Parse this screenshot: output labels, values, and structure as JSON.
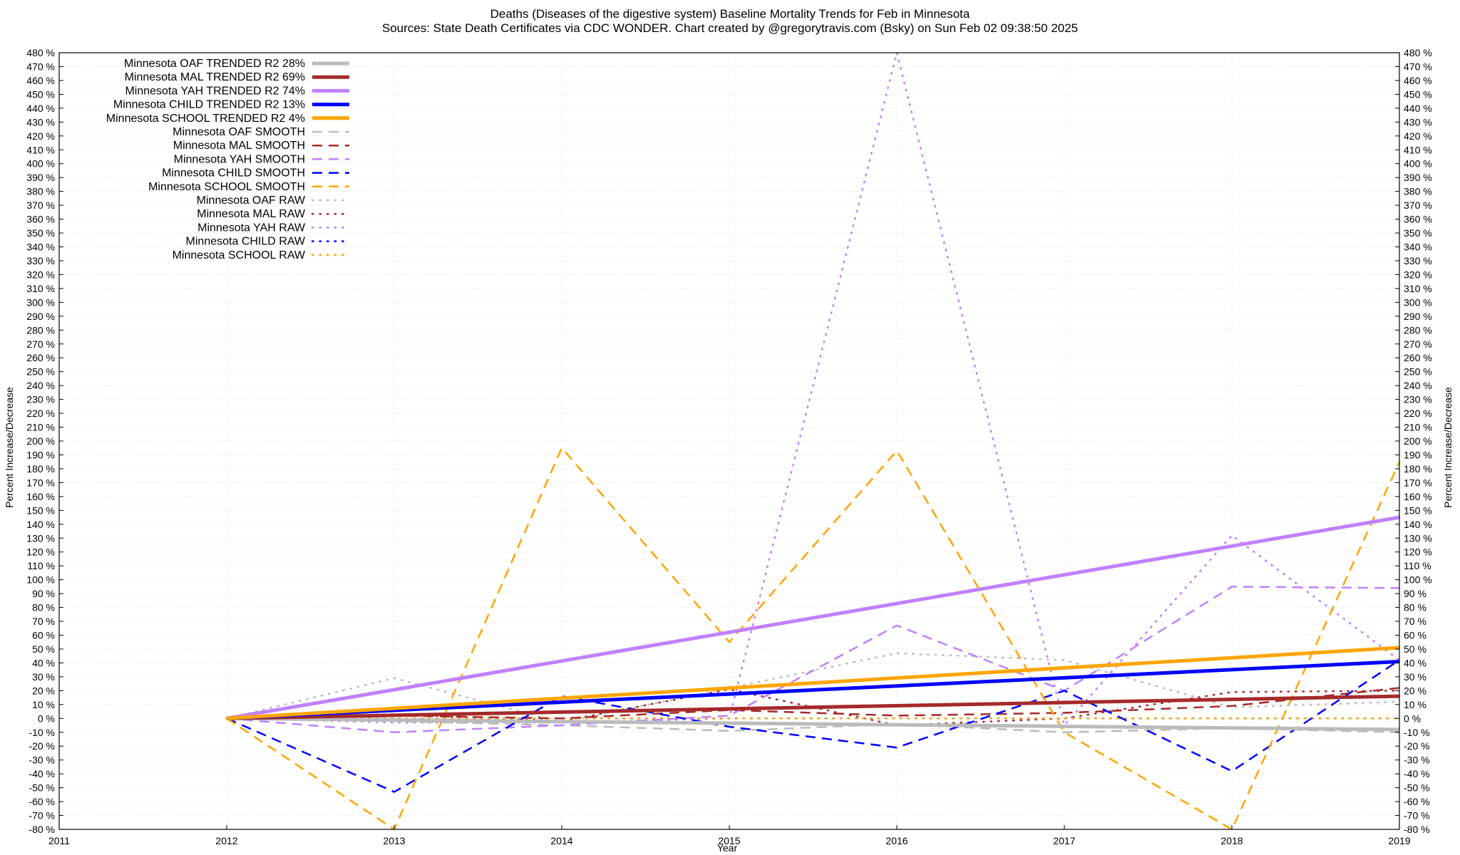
{
  "chart_data": {
    "type": "line",
    "title": "Deaths (Diseases of the digestive system)  Baseline Mortality Trends for Feb in Minnesota",
    "subtitle": "Sources: State Death Certificates via CDC WONDER.               Chart created by @gregorytravis.com (Bsky) on Sun Feb 02 09:38:50 2025",
    "xlabel": "Year",
    "ylabel_left": "Percent Increase/Decrease",
    "ylabel_right": "Percent Increase/Decrease",
    "xlim": [
      2011,
      2019
    ],
    "ylim": [
      -80,
      480
    ],
    "x_ticks": [
      2011,
      2012,
      2013,
      2014,
      2015,
      2016,
      2017,
      2018,
      2019
    ],
    "y_tick_step": 10,
    "y_tick_suffix": " %",
    "grid": true,
    "legend_position": "top-left",
    "series": [
      {
        "name": "Minnesota OAF TRENDED R2  28%",
        "style": "solid",
        "width": 5,
        "color": "#bbbbbb",
        "x": [
          2012,
          2019
        ],
        "values": [
          0,
          -8
        ]
      },
      {
        "name": "Minnesota MAL TRENDED R2  69%",
        "style": "solid",
        "width": 5,
        "color": "#a52a2a",
        "x": [
          2012,
          2019
        ],
        "values": [
          0,
          16
        ]
      },
      {
        "name": "Minnesota YAH TRENDED R2  74%",
        "style": "solid",
        "width": 5,
        "color": "#c080ff",
        "x": [
          2012,
          2019
        ],
        "values": [
          0,
          145
        ]
      },
      {
        "name": "Minnesota CHILD TRENDED R2  13%",
        "style": "solid",
        "width": 5,
        "color": "#0000ff",
        "x": [
          2012,
          2019
        ],
        "values": [
          0,
          41
        ]
      },
      {
        "name": "Minnesota SCHOOL TRENDED R2   4%",
        "style": "solid",
        "width": 5,
        "color": "#ffa500",
        "x": [
          2012,
          2019
        ],
        "values": [
          0,
          51
        ]
      },
      {
        "name": "Minnesota OAF SMOOTH",
        "style": "dashed",
        "width": 2.5,
        "color": "#bbbbbb",
        "x": [
          2012,
          2013,
          2014,
          2015,
          2016,
          2017,
          2018,
          2019
        ],
        "values": [
          0,
          -2,
          -5,
          -9,
          -4,
          -10,
          -7,
          -10
        ]
      },
      {
        "name": "Minnesota MAL SMOOTH",
        "style": "dashed",
        "width": 2.5,
        "color": "#a52a2a",
        "x": [
          2012,
          2013,
          2014,
          2015,
          2016,
          2017,
          2018,
          2019
        ],
        "values": [
          0,
          2,
          0,
          6,
          2,
          4,
          9,
          22
        ]
      },
      {
        "name": "Minnesota YAH SMOOTH",
        "style": "dashed",
        "width": 2.5,
        "color": "#c080ff",
        "x": [
          2012,
          2013,
          2014,
          2015,
          2016,
          2017,
          2018,
          2019
        ],
        "values": [
          0,
          -10,
          -5,
          2,
          67,
          20,
          95,
          94
        ]
      },
      {
        "name": "Minnesota CHILD SMOOTH",
        "style": "dashed",
        "width": 2.5,
        "color": "#0000ff",
        "x": [
          2012,
          2013,
          2014,
          2015,
          2016,
          2017,
          2018,
          2019
        ],
        "values": [
          0,
          -53,
          16,
          -6,
          -21,
          20,
          -38,
          42
        ]
      },
      {
        "name": "Minnesota SCHOOL SMOOTH",
        "style": "dashed",
        "width": 2.5,
        "color": "#ffa500",
        "x": [
          2012,
          2013,
          2014,
          2015,
          2016,
          2017,
          2018,
          2019
        ],
        "values": [
          0,
          -80,
          195,
          55,
          193,
          -10,
          -80,
          185
        ]
      },
      {
        "name": "Minnesota OAF RAW",
        "style": "dotted",
        "width": 2.5,
        "color": "#bbbbbb",
        "x": [
          2012,
          2013,
          2014,
          2015,
          2016,
          2017,
          2018,
          2019
        ],
        "values": [
          0,
          29,
          -3,
          22,
          47,
          42,
          8,
          12
        ]
      },
      {
        "name": "Minnesota MAL RAW",
        "style": "dotted",
        "width": 2.5,
        "color": "#a52a2a",
        "x": [
          2012,
          2013,
          2014,
          2015,
          2016,
          2017,
          2018,
          2019
        ],
        "values": [
          0,
          3,
          -2,
          21,
          -5,
          0,
          19,
          20
        ]
      },
      {
        "name": "Minnesota YAH RAW",
        "style": "dotted",
        "width": 2.5,
        "color": "#c080ff",
        "x": [
          2012,
          2013,
          2014,
          2015,
          2016,
          2017,
          2018,
          2019
        ],
        "values": [
          0,
          -3,
          -3,
          0,
          480,
          -5,
          132,
          42
        ]
      },
      {
        "name": "Minnesota CHILD RAW",
        "style": "dotted",
        "width": 2.5,
        "color": "#0000ff",
        "x": [
          2012,
          2013,
          2014,
          2015,
          2016,
          2017,
          2018,
          2019
        ],
        "values": [
          0,
          0,
          0,
          0,
          0,
          0,
          0,
          0
        ]
      },
      {
        "name": "Minnesota SCHOOL RAW",
        "style": "dotted",
        "width": 2.5,
        "color": "#ffa500",
        "x": [
          2012,
          2013,
          2014,
          2015,
          2016,
          2017,
          2018,
          2019
        ],
        "values": [
          0,
          0,
          0,
          0,
          0,
          0,
          0,
          0
        ]
      }
    ]
  }
}
